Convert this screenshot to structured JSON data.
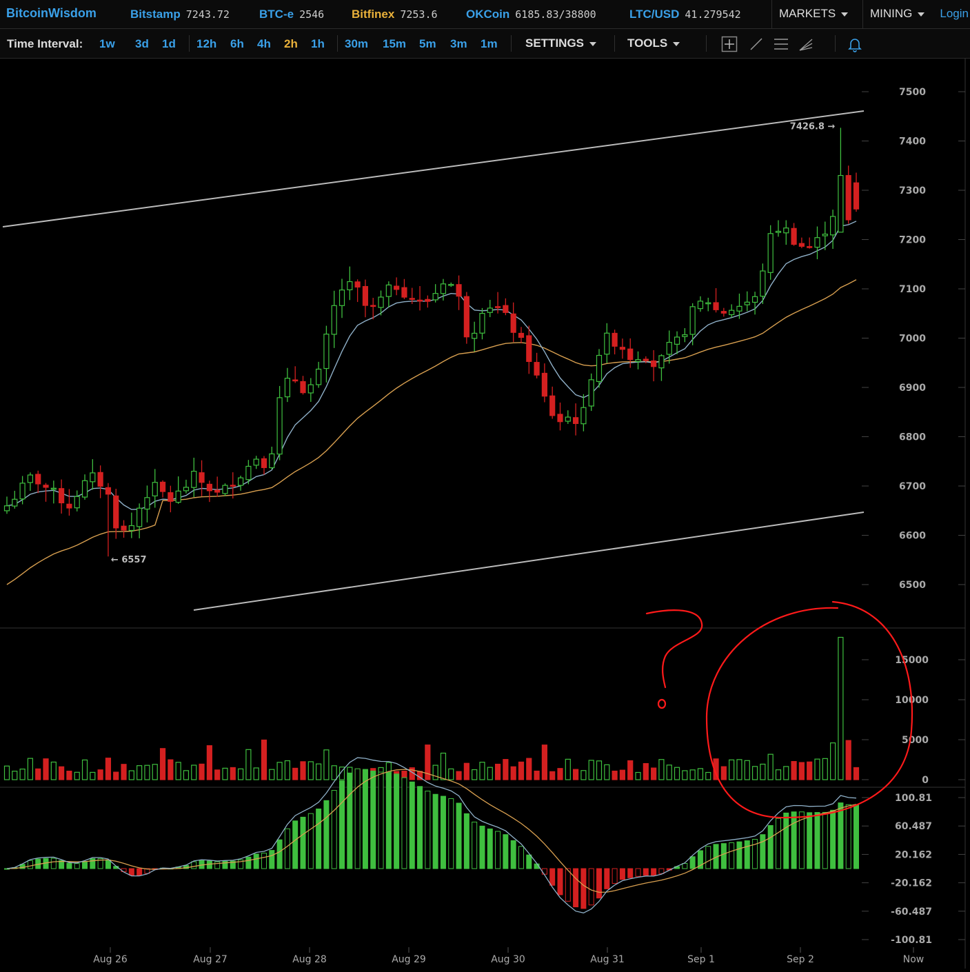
{
  "brand": "BitcoinWisdom",
  "tickers": [
    {
      "name": "Bitstamp",
      "price": "7243.72",
      "color": "#3aa0e8"
    },
    {
      "name": "BTC-e",
      "price": "2546",
      "color": "#3aa0e8"
    },
    {
      "name": "Bitfinex",
      "price": "7253.6",
      "color": "#e8b03a"
    },
    {
      "name": "OKCoin",
      "price": "6185.83/38800",
      "color": "#3aa0e8"
    },
    {
      "name": "LTC/USD",
      "price": "41.279542",
      "color": "#3aa0e8"
    }
  ],
  "menus": {
    "markets": "MARKETS",
    "mining": "MINING",
    "login": "Login"
  },
  "interval_label": "Time Interval:",
  "intervals": [
    "1w",
    "3d",
    "1d",
    "12h",
    "6h",
    "4h",
    "2h",
    "1h",
    "30m",
    "15m",
    "5m",
    "3m",
    "1m"
  ],
  "active_interval": "2h",
  "toolbar": {
    "settings": "SETTINGS",
    "tools": "TOOLS"
  },
  "icons": [
    "crosshair-icon",
    "line-draw-icon",
    "hlines-icon",
    "fib-draw-icon",
    "alert-bell-icon"
  ],
  "colors": {
    "up": "#3fbf3f",
    "down": "#d42020",
    "ema_fast": "#8fb0c8",
    "ema_slow": "#d9a050",
    "trendline": "#bbbbbb",
    "annotation": "#ff1a1a",
    "accent": "#3aa0e8"
  },
  "chart_data": [
    {
      "type": "candlestick",
      "name": "price",
      "y_ticks": [
        "7500",
        "7400",
        "7300",
        "7200",
        "7100",
        "7000",
        "6900",
        "6800",
        "6700",
        "6600",
        "6500"
      ],
      "ylim": [
        6450,
        7560
      ],
      "x_ticks": [
        "Aug 26",
        "Aug 27",
        "Aug 28",
        "Aug 29",
        "Aug 30",
        "Aug 31",
        "Sep 1",
        "Sep 2",
        "Now"
      ],
      "high_label": "7426.8",
      "low_label": "6557",
      "trend_lines": [
        {
          "from": [
            "Aug 25 08:00",
            7210
          ],
          "to": [
            "Sep 2 20:00",
            7460
          ]
        },
        {
          "from": [
            "Aug 27 08:00",
            6550
          ],
          "to": [
            "Sep 2 20:00",
            6640
          ]
        }
      ],
      "approx_close_path": [
        6660,
        6690,
        6720,
        6700,
        6680,
        6660,
        6700,
        6720,
        6690,
        6600,
        6620,
        6680,
        6700,
        6670,
        6690,
        6720,
        6700,
        6680,
        6710,
        6730,
        6760,
        6740,
        6900,
        6920,
        6890,
        6930,
        7050,
        7110,
        7100,
        7050,
        7080,
        7110,
        7090,
        7070,
        7080,
        7120,
        7100,
        6990,
        7060,
        7070,
        7040,
        7000,
        6950,
        6880,
        6830,
        6840,
        6830,
        6950,
        7000,
        6990,
        6960,
        6970,
        6940,
        6980,
        7000,
        7060,
        7080,
        7050,
        7060,
        7070,
        7080,
        7200,
        7230,
        7200,
        7180,
        7200,
        7240,
        7340,
        7260
      ]
    },
    {
      "type": "bar",
      "name": "volume",
      "y_ticks": [
        "15000",
        "10000",
        "5000",
        "0"
      ],
      "ylim": [
        0,
        18000
      ]
    },
    {
      "type": "histogram",
      "name": "macd",
      "y_ticks": [
        "100.81",
        "60.487",
        "20.162",
        "-20.162",
        "-60.487",
        "-100.81"
      ],
      "ylim": [
        -100.81,
        100.81
      ]
    }
  ],
  "annotations": {
    "question_mark": "?"
  }
}
